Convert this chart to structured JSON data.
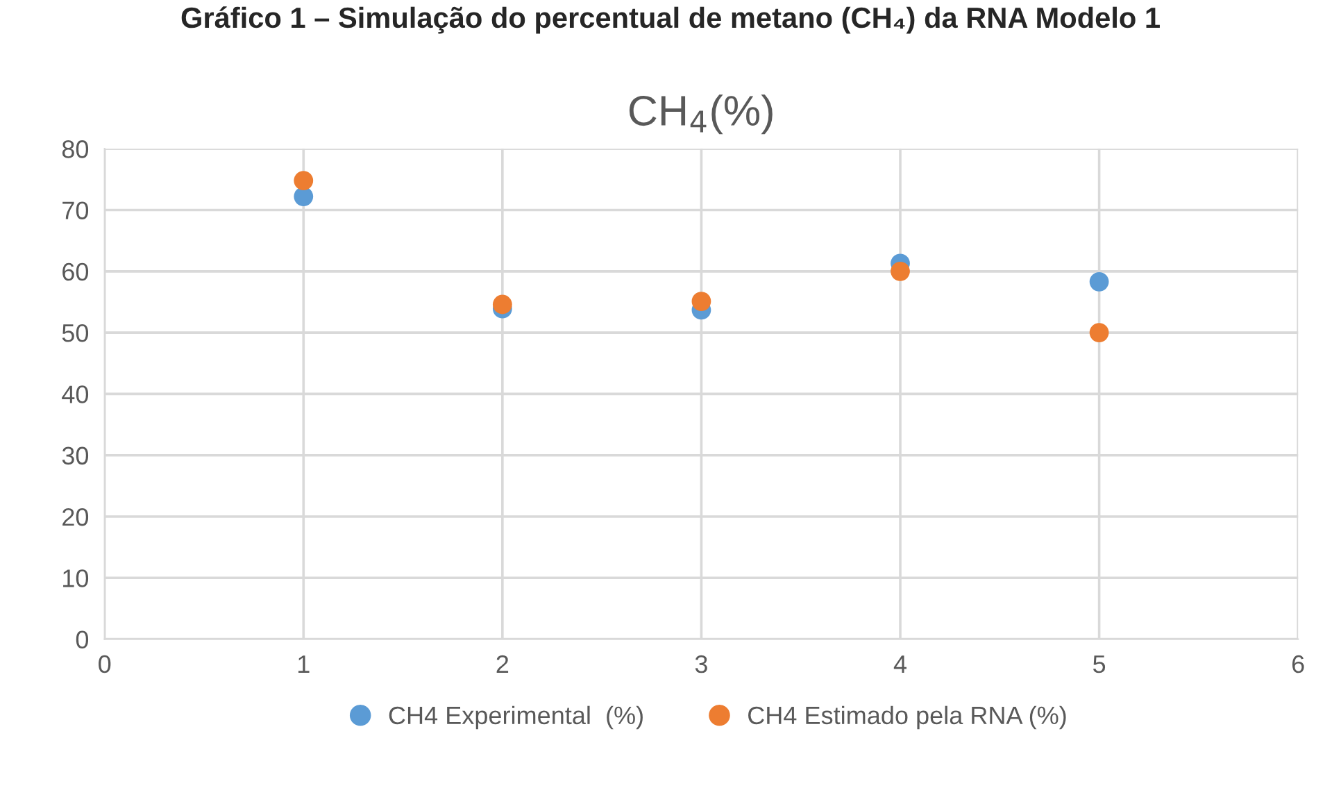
{
  "chart_data": {
    "type": "scatter",
    "title": "CH$_{4}$(%)",
    "subtitle": "Gráfico 1 – Simulação do percentual de metano (CH₄) da RNA Modelo 1",
    "x": [
      1,
      2,
      3,
      4,
      5
    ],
    "series": [
      {
        "name": "CH4 Experimental  (%)",
        "color": "#5b9bd5",
        "values": [
          72.2,
          53.9,
          53.7,
          61.3,
          58.3
        ]
      },
      {
        "name": "CH4 Estimado pela RNA (%)",
        "color": "#ed7d31",
        "values": [
          74.8,
          54.6,
          55.1,
          60.0,
          50.0
        ]
      }
    ],
    "xlim": [
      0,
      6
    ],
    "xticks": [
      0,
      1,
      2,
      3,
      4,
      5,
      6
    ],
    "ylim": [
      0,
      80
    ],
    "yticks": [
      0,
      10,
      20,
      30,
      40,
      50,
      60,
      70,
      80
    ],
    "grid": true,
    "legend": "bottom",
    "marker": "circle"
  }
}
